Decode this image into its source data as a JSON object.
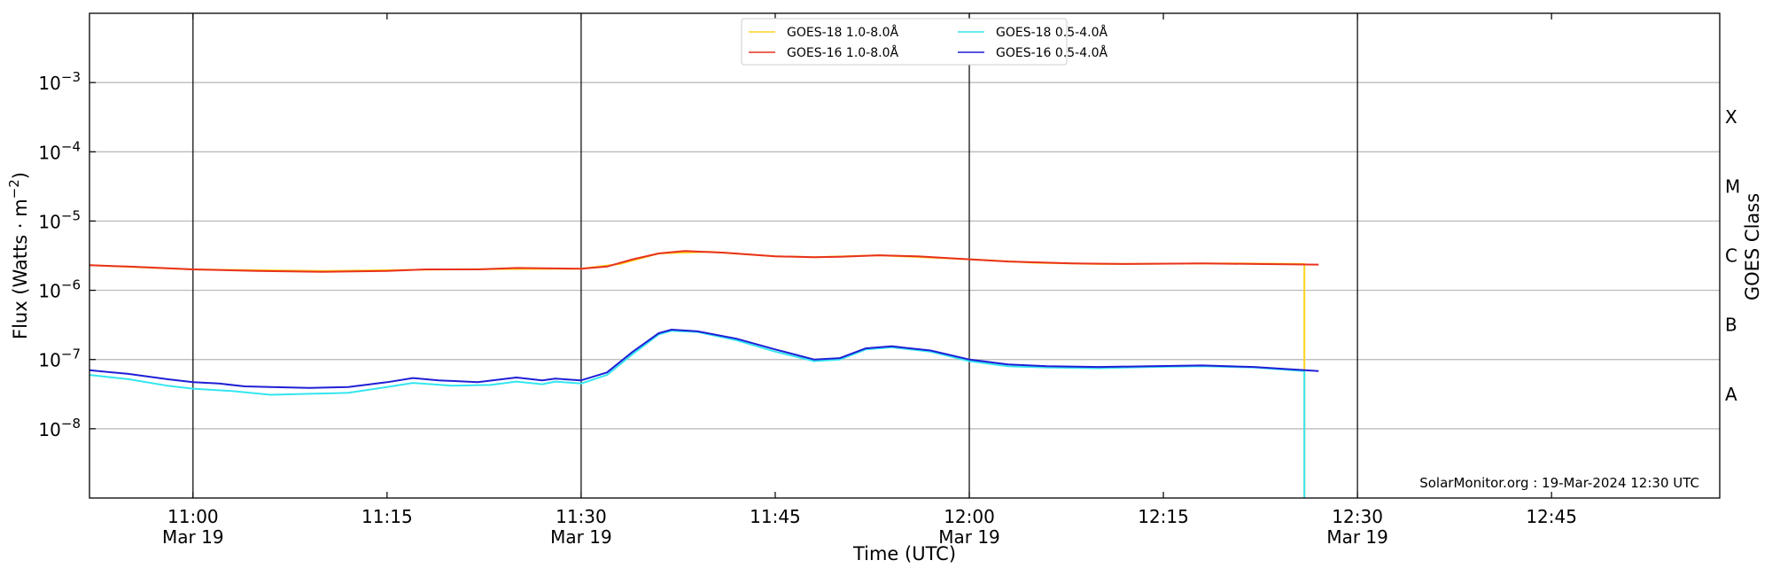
{
  "chart_data": {
    "type": "line",
    "xlabel": "Time (UTC)",
    "ylabel": "Flux (Watts · m⁻²)",
    "right_label": "GOES Class",
    "credit": "SolarMonitor.org : 19-Mar-2024 12:30 UTC",
    "y_scale": "log",
    "ylim": [
      1e-09,
      0.01
    ],
    "xlim": [
      "10:52",
      "12:58"
    ],
    "x_ticks": [
      {
        "time": "11:00",
        "label": "11:00",
        "sub": "Mar 19"
      },
      {
        "time": "11:15",
        "label": "11:15",
        "sub": ""
      },
      {
        "time": "11:30",
        "label": "11:30",
        "sub": "Mar 19"
      },
      {
        "time": "11:45",
        "label": "11:45",
        "sub": ""
      },
      {
        "time": "12:00",
        "label": "12:00",
        "sub": "Mar 19"
      },
      {
        "time": "12:15",
        "label": "12:15",
        "sub": ""
      },
      {
        "time": "12:30",
        "label": "12:30",
        "sub": "Mar 19"
      },
      {
        "time": "12:45",
        "label": "12:45",
        "sub": ""
      }
    ],
    "y_ticks": [
      {
        "value": 1e-08,
        "base": "10",
        "exp": "−8"
      },
      {
        "value": 1e-07,
        "base": "10",
        "exp": "−7"
      },
      {
        "value": 1e-06,
        "base": "10",
        "exp": "−6"
      },
      {
        "value": 1e-05,
        "base": "10",
        "exp": "−5"
      },
      {
        "value": 0.0001,
        "base": "10",
        "exp": "−4"
      },
      {
        "value": 0.001,
        "base": "10",
        "exp": "−3"
      }
    ],
    "goes_classes": [
      {
        "label": "A",
        "value": 3.16e-08
      },
      {
        "label": "B",
        "value": 3.16e-07
      },
      {
        "label": "C",
        "value": 3.16e-06
      },
      {
        "label": "M",
        "value": 3.16e-05
      },
      {
        "label": "X",
        "value": 0.000316
      }
    ],
    "day_lines": [
      "11:00",
      "11:30",
      "12:00",
      "12:30"
    ],
    "grid": true,
    "legend_position": "top-center",
    "series": [
      {
        "name": "GOES-18 1.0-8.0Å",
        "color": "#ffd21e",
        "points": [
          [
            "10:52",
            2.3e-06
          ],
          [
            "11:00",
            2e-06
          ],
          [
            "11:10",
            1.9e-06
          ],
          [
            "11:20",
            2e-06
          ],
          [
            "11:30",
            2.05e-06
          ],
          [
            "11:33",
            2.4e-06
          ],
          [
            "11:36",
            3.4e-06
          ],
          [
            "11:40",
            3.6e-06
          ],
          [
            "11:45",
            3.1e-06
          ],
          [
            "11:48",
            3e-06
          ],
          [
            "11:53",
            3.2e-06
          ],
          [
            "12:00",
            2.8e-06
          ],
          [
            "12:05",
            2.5e-06
          ],
          [
            "12:10",
            2.4e-06
          ],
          [
            "12:20",
            2.45e-06
          ],
          [
            "12:25.9",
            2.4e-06
          ],
          [
            "12:25.9",
            1e-09
          ]
        ]
      },
      {
        "name": "GOES-16 1.0-8.0Å",
        "color": "#e8321e",
        "points": [
          [
            "10:52",
            2.3e-06
          ],
          [
            "10:55",
            2.2e-06
          ],
          [
            "11:00",
            2e-06
          ],
          [
            "11:05",
            1.9e-06
          ],
          [
            "11:10",
            1.85e-06
          ],
          [
            "11:15",
            1.9e-06
          ],
          [
            "11:18",
            2e-06
          ],
          [
            "11:22",
            2e-06
          ],
          [
            "11:25",
            2.1e-06
          ],
          [
            "11:30",
            2.05e-06
          ],
          [
            "11:32",
            2.2e-06
          ],
          [
            "11:34",
            2.8e-06
          ],
          [
            "11:36",
            3.4e-06
          ],
          [
            "11:38",
            3.7e-06
          ],
          [
            "11:41",
            3.5e-06
          ],
          [
            "11:45",
            3.1e-06
          ],
          [
            "11:48",
            3e-06
          ],
          [
            "11:50",
            3.05e-06
          ],
          [
            "11:53",
            3.2e-06
          ],
          [
            "11:56",
            3.1e-06
          ],
          [
            "12:00",
            2.8e-06
          ],
          [
            "12:03",
            2.6e-06
          ],
          [
            "12:08",
            2.45e-06
          ],
          [
            "12:12",
            2.4e-06
          ],
          [
            "12:18",
            2.45e-06
          ],
          [
            "12:22",
            2.4e-06
          ],
          [
            "12:27",
            2.35e-06
          ]
        ]
      },
      {
        "name": "GOES-18 0.5-4.0Å",
        "color": "#33e6f0",
        "points": [
          [
            "10:52",
            6e-08
          ],
          [
            "10:55",
            5.2e-08
          ],
          [
            "10:58",
            4.2e-08
          ],
          [
            "11:00",
            3.8e-08
          ],
          [
            "11:03",
            3.5e-08
          ],
          [
            "11:06",
            3.1e-08
          ],
          [
            "11:09",
            3.2e-08
          ],
          [
            "11:12",
            3.3e-08
          ],
          [
            "11:15",
            4e-08
          ],
          [
            "11:17",
            4.6e-08
          ],
          [
            "11:20",
            4.2e-08
          ],
          [
            "11:23",
            4.3e-08
          ],
          [
            "11:25",
            4.8e-08
          ],
          [
            "11:27",
            4.4e-08
          ],
          [
            "11:28",
            4.8e-08
          ],
          [
            "11:30",
            4.5e-08
          ],
          [
            "11:32",
            6e-08
          ],
          [
            "11:34",
            1.2e-07
          ],
          [
            "11:36",
            2.3e-07
          ],
          [
            "11:37",
            2.6e-07
          ],
          [
            "11:39",
            2.5e-07
          ],
          [
            "11:42",
            1.9e-07
          ],
          [
            "11:45",
            1.3e-07
          ],
          [
            "11:48",
            9.5e-08
          ],
          [
            "11:50",
            1e-07
          ],
          [
            "11:52",
            1.4e-07
          ],
          [
            "11:54",
            1.5e-07
          ],
          [
            "11:57",
            1.3e-07
          ],
          [
            "12:00",
            9.5e-08
          ],
          [
            "12:03",
            8e-08
          ],
          [
            "12:06",
            7.7e-08
          ],
          [
            "12:10",
            7.5e-08
          ],
          [
            "12:14",
            7.8e-08
          ],
          [
            "12:18",
            8e-08
          ],
          [
            "12:22",
            7.7e-08
          ],
          [
            "12:25.9",
            6.8e-08
          ],
          [
            "12:25.9",
            1e-09
          ]
        ]
      },
      {
        "name": "GOES-16 0.5-4.0Å",
        "color": "#1f1fd6",
        "points": [
          [
            "10:52",
            7e-08
          ],
          [
            "10:55",
            6.2e-08
          ],
          [
            "10:58",
            5.2e-08
          ],
          [
            "11:00",
            4.7e-08
          ],
          [
            "11:02",
            4.5e-08
          ],
          [
            "11:04",
            4.1e-08
          ],
          [
            "11:06",
            4e-08
          ],
          [
            "11:09",
            3.9e-08
          ],
          [
            "11:12",
            4e-08
          ],
          [
            "11:15",
            4.7e-08
          ],
          [
            "11:17",
            5.4e-08
          ],
          [
            "11:19",
            5e-08
          ],
          [
            "11:22",
            4.7e-08
          ],
          [
            "11:25",
            5.5e-08
          ],
          [
            "11:27",
            5e-08
          ],
          [
            "11:28",
            5.3e-08
          ],
          [
            "11:30",
            5e-08
          ],
          [
            "11:32",
            6.5e-08
          ],
          [
            "11:34",
            1.3e-07
          ],
          [
            "11:36",
            2.4e-07
          ],
          [
            "11:37",
            2.7e-07
          ],
          [
            "11:39",
            2.55e-07
          ],
          [
            "11:42",
            2e-07
          ],
          [
            "11:45",
            1.4e-07
          ],
          [
            "11:48",
            1e-07
          ],
          [
            "11:50",
            1.05e-07
          ],
          [
            "11:52",
            1.45e-07
          ],
          [
            "11:54",
            1.55e-07
          ],
          [
            "11:57",
            1.35e-07
          ],
          [
            "12:00",
            1e-07
          ],
          [
            "12:03",
            8.5e-08
          ],
          [
            "12:06",
            8e-08
          ],
          [
            "12:10",
            7.8e-08
          ],
          [
            "12:14",
            8e-08
          ],
          [
            "12:18",
            8.2e-08
          ],
          [
            "12:22",
            7.8e-08
          ],
          [
            "12:27",
            6.8e-08
          ]
        ]
      }
    ]
  }
}
